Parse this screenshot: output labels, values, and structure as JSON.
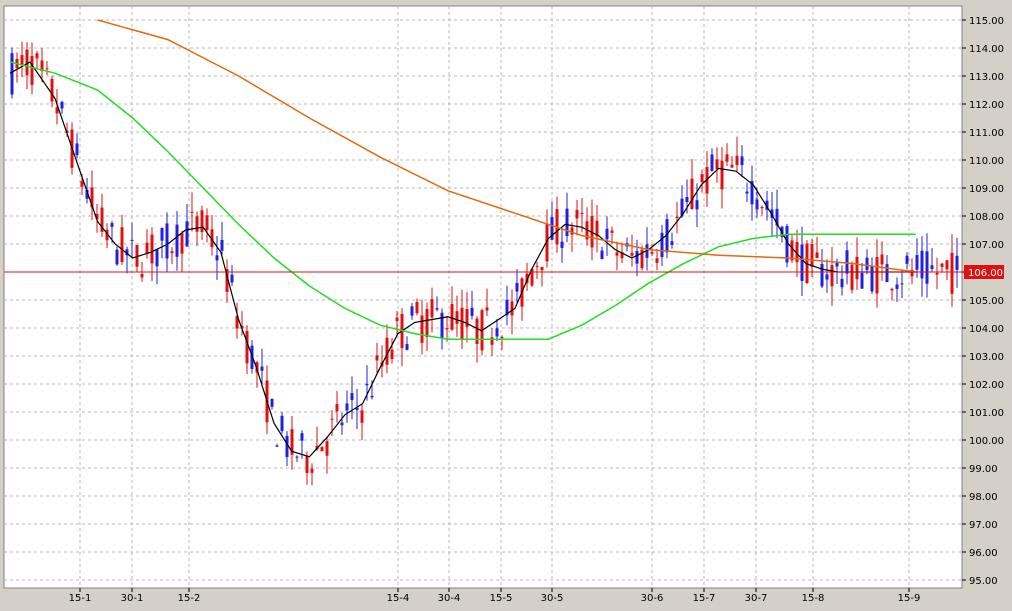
{
  "chart_data": {
    "type": "candlestick",
    "title": "",
    "xlabel": "",
    "ylabel": "",
    "ylim": [
      95,
      115
    ],
    "y_ticks": [
      "95.00",
      "96.00",
      "97.00",
      "98.00",
      "99.00",
      "100.00",
      "101.00",
      "102.00",
      "103.00",
      "104.00",
      "105.00",
      "106.00",
      "107.00",
      "108.00",
      "109.00",
      "110.00",
      "111.00",
      "112.00",
      "113.00",
      "114.00",
      "115.00"
    ],
    "x_ticks": [
      "15-1",
      "30-1",
      "15-2",
      "15-4",
      "30-4",
      "15-5",
      "30-5",
      "30-6",
      "15-7",
      "30-7",
      "15-8",
      "15-9"
    ],
    "grid": true,
    "current_price": "106.00",
    "colors": {
      "up": "#2020e0",
      "down": "#e01010",
      "ma_fast": "#000000",
      "ma_mid": "#22dd22",
      "ma_slow": "#e06a10",
      "price_line": "#e01010",
      "background": "#ffffff"
    },
    "series": [
      {
        "type": "line",
        "color": "ma_fast",
        "x": [
          "Jan 01",
          "Jan 05",
          "Jan 10",
          "Jan 15",
          "Jan 20",
          "Jan 25",
          "Jan 30",
          "Feb 04",
          "Feb 09",
          "Feb 14",
          "Feb 19",
          "Feb 24",
          "Mar 01",
          "Mar 06",
          "Mar 11",
          "Mar 16",
          "Mar 21",
          "Mar 26",
          "Mar 31",
          "Apr 05",
          "Apr 10",
          "Apr 15",
          "Apr 20",
          "Apr 25",
          "Apr 30",
          "May 05",
          "May 10",
          "May 15",
          "May 20",
          "May 25",
          "May 30",
          "Jun 04",
          "Jun 09",
          "Jun 14",
          "Jun 19",
          "Jun 24",
          "Jun 29",
          "Jul 04",
          "Jul 09",
          "Jul 14",
          "Jul 19",
          "Jul 24",
          "Jul 29",
          "Aug 03",
          "Aug 08",
          "Aug 13",
          "Aug 18",
          "Aug 23",
          "Aug 28",
          "Sep 02",
          "Sep 07",
          "Sep 12",
          "Sep 17"
        ],
        "values": [
          113.1,
          113.5,
          112.2,
          109.6,
          107.8,
          107.0,
          106.5,
          106.7,
          107.0,
          107.5,
          107.6,
          106.7,
          104.3,
          102.6,
          100.6,
          99.6,
          99.4,
          100.1,
          100.9,
          101.3,
          102.6,
          103.8,
          104.2,
          104.3,
          104.4,
          104.2,
          103.9,
          104.3,
          104.7,
          106.1,
          107.2,
          107.7,
          107.6,
          107.3,
          106.8,
          106.5,
          106.8,
          107.3,
          108.1,
          109.1,
          109.7,
          109.6,
          109.1,
          108.1,
          107.0,
          106.3,
          106.1,
          106.0,
          106.0,
          106.0,
          106.0,
          106.0,
          106.0
        ]
      },
      {
        "type": "line",
        "color": "ma_mid",
        "x": [
          "Jan 01",
          "Jan 10",
          "Jan 20",
          "Jan 30",
          "Feb 09",
          "Feb 19",
          "Mar 01",
          "Mar 11",
          "Mar 21",
          "Mar 31",
          "Apr 10",
          "Apr 20",
          "Apr 30",
          "May 10",
          "May 20",
          "May 30",
          "Jun 09",
          "Jun 19",
          "Jun 29",
          "Jul 09",
          "Jul 19",
          "Jul 29",
          "Aug 08",
          "Aug 18",
          "Aug 28",
          "Sep 07",
          "Sep 17"
        ],
        "values": [
          113.5,
          113.1,
          112.5,
          111.5,
          110.3,
          109.0,
          107.7,
          106.5,
          105.5,
          104.7,
          104.1,
          103.8,
          103.6,
          103.6,
          103.6,
          103.6,
          104.1,
          104.8,
          105.6,
          106.3,
          106.9,
          107.2,
          107.35,
          107.35,
          107.35,
          107.35,
          107.35
        ]
      },
      {
        "type": "line",
        "color": "ma_slow",
        "x": [
          "Jan 20",
          "Feb 09",
          "Mar 01",
          "Mar 21",
          "Apr 10",
          "Apr 30",
          "May 20",
          "Jun 09",
          "Jun 29",
          "Jul 19",
          "Aug 08",
          "Aug 28",
          "Sep 17"
        ],
        "values": [
          115.0,
          114.3,
          113.0,
          111.5,
          110.1,
          108.9,
          108.1,
          107.3,
          106.8,
          106.6,
          106.5,
          106.3,
          106.0
        ]
      }
    ]
  }
}
